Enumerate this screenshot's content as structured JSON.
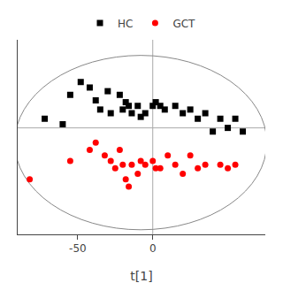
{
  "chart_data": {
    "type": "scatter",
    "xlabel": "t[1]",
    "xlim": [
      -90,
      75
    ],
    "ylim": [
      -58,
      48
    ],
    "xticks": [
      -50,
      0
    ],
    "tick_labels": "x",
    "grid": false,
    "legend": "top",
    "series": [
      {
        "name": "HC",
        "color": "black",
        "marker": "square",
        "x": [
          -72,
          -60,
          -55,
          -48,
          -42,
          -38,
          -35,
          -30,
          -28,
          -22,
          -20,
          -18,
          -16,
          -14,
          -10,
          -8,
          -5,
          0,
          2,
          5,
          8,
          15,
          20,
          25,
          30,
          35,
          40,
          45,
          50,
          55,
          60
        ],
        "values": [
          5,
          2,
          18,
          25,
          22,
          15,
          10,
          20,
          8,
          18,
          10,
          14,
          12,
          8,
          12,
          6,
          8,
          12,
          14,
          12,
          10,
          12,
          8,
          10,
          5,
          8,
          -2,
          5,
          0,
          5,
          -2
        ]
      },
      {
        "name": "GCT",
        "color": "red",
        "marker": "circle",
        "x": [
          -82,
          -55,
          -42,
          -38,
          -32,
          -28,
          -25,
          -22,
          -20,
          -18,
          -16,
          -14,
          -10,
          -8,
          -5,
          0,
          2,
          5,
          10,
          15,
          20,
          25,
          30,
          35,
          45,
          50,
          55
        ],
        "values": [
          -28,
          -18,
          -12,
          -8,
          -15,
          -18,
          -22,
          -12,
          -20,
          -28,
          -32,
          -20,
          -25,
          -18,
          -20,
          -18,
          -22,
          -22,
          -15,
          -20,
          -25,
          -15,
          -22,
          -20,
          -20,
          -22,
          -20
        ]
      }
    ],
    "ellipse": {
      "cx": -8,
      "cy": -8,
      "width": 168,
      "height": 95,
      "color": "#888888"
    },
    "crosshairs": {
      "x": 0,
      "y": 0,
      "color": "#aaaaaa"
    }
  }
}
